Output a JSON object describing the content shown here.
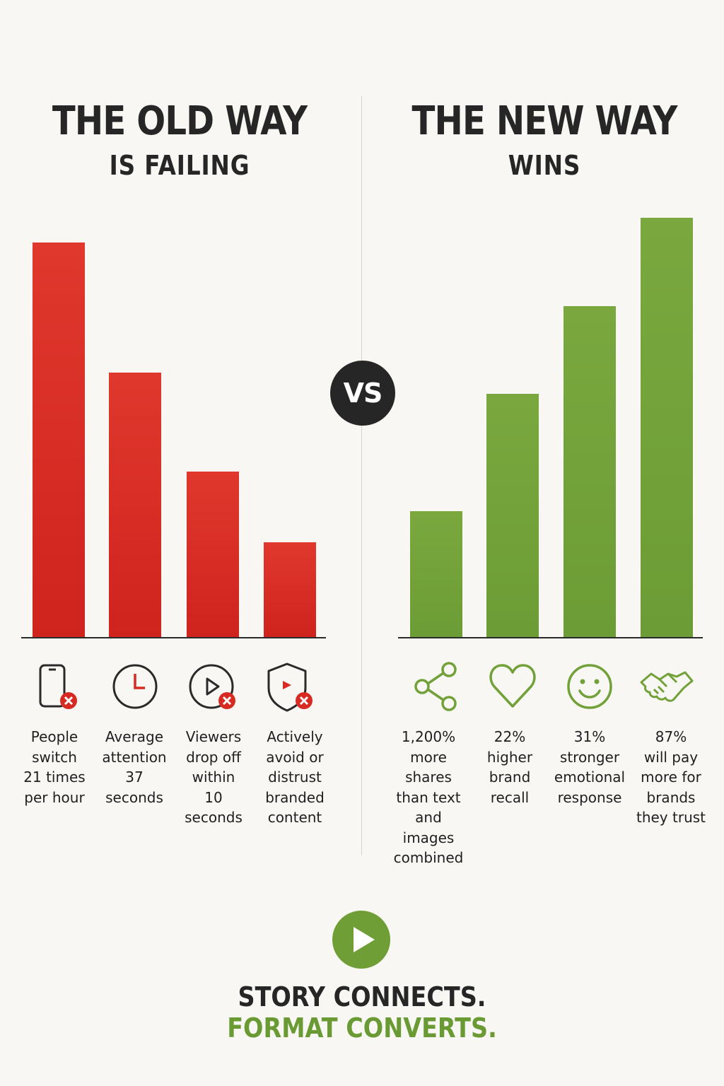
{
  "left": {
    "title": "THE OLD WAY",
    "subtitle": "IS FAILING",
    "color": "#d72a22"
  },
  "right": {
    "title": "THE NEW WAY",
    "subtitle": "WINS",
    "color": "#72a139"
  },
  "vs_label": "VS",
  "chart_data": [
    {
      "type": "bar",
      "title": "",
      "categories": [
        "People switch 21 times per hour",
        "Average attention 37 seconds",
        "Viewers drop off within 10 seconds",
        "Actively avoid or distrust branded content"
      ],
      "values": [
        100,
        67,
        42,
        24
      ],
      "ylim": [
        0,
        100
      ],
      "color": "#d72a22",
      "icons": [
        "phone-x-icon",
        "clock-icon",
        "play-x-icon",
        "shield-x-icon"
      ],
      "labels": [
        "People\nswitch\n21 times\nper hour",
        "Average\nattention\n37\nseconds",
        "Viewers\ndrop off\nwithin\n10\nseconds",
        "Actively\navoid or\ndistrust\nbranded\ncontent"
      ]
    },
    {
      "type": "bar",
      "title": "",
      "categories": [
        "1,200% more shares than text and images combined",
        "22% higher brand recall",
        "31% stronger emotional response",
        "87% will pay more for brands they trust"
      ],
      "values": [
        30,
        58,
        79,
        100
      ],
      "ylim": [
        0,
        100
      ],
      "color": "#72a139",
      "icons": [
        "share-icon",
        "heart-icon",
        "smiley-icon",
        "handshake-icon"
      ],
      "labels": [
        "1,200%\nmore\nshares\nthan text\nand images\ncombined",
        "22%\nhigher\nbrand\nrecall",
        "31%\nstronger\nemotional\nresponse",
        "87%\nwill pay\nmore for\nbrands\nthey trust"
      ]
    }
  ],
  "footer": {
    "icon": "play-circle-icon",
    "line1": "STORY CONNECTS.",
    "line2": "FORMAT CONVERTS."
  }
}
